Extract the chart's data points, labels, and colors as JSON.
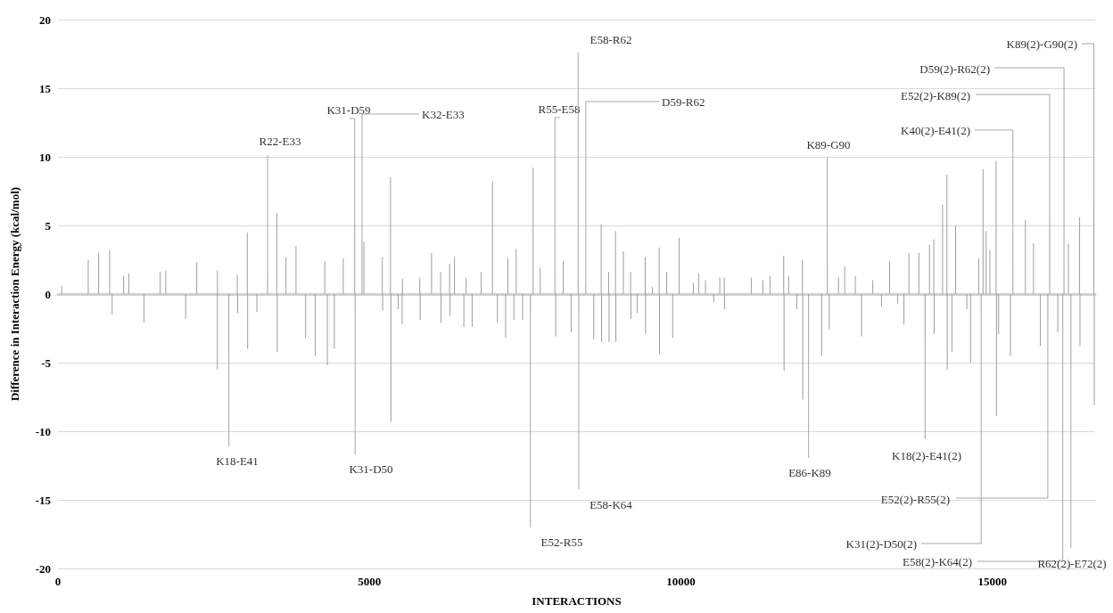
{
  "chart_data": {
    "type": "bar",
    "xlabel": "INTERACTIONS",
    "ylabel": "Difference in Interaction Energy (kcal/mol)",
    "xlim": [
      0,
      16650
    ],
    "xticks": [
      0,
      5000,
      10000,
      15000
    ],
    "ylim": [
      -20,
      20
    ],
    "yticks": [
      -20,
      -15,
      -10,
      -5,
      0,
      5,
      10,
      15,
      20
    ],
    "grid": "y",
    "series": [
      {
        "color": "#9e9e9e",
        "x": [
          60,
          486,
          652,
          829,
          870,
          1054,
          1137,
          1380,
          1641,
          1730,
          2050,
          2227,
          2559,
          2560,
          2743,
          2879,
          2885,
          3039,
          3045,
          3193,
          3365,
          3513,
          3520,
          3661,
          3821,
          3975,
          4129,
          4283,
          4325,
          4437,
          4579,
          4763,
          4770,
          4881,
          4911,
          5207,
          5212,
          5338,
          5345,
          5462,
          5525,
          5530,
          5809,
          5815,
          5997,
          6142,
          6148,
          6287,
          6293,
          6365,
          6516,
          6552,
          6649,
          6794,
          6975,
          7054,
          7186,
          7223,
          7319,
          7356,
          7458,
          7585,
          7627,
          7742,
          7978,
          7990,
          8111,
          8237,
          8350,
          8360,
          8473,
          8600,
          8721,
          8727,
          8841,
          8847,
          8950,
          8956,
          9077,
          9192,
          9198,
          9300,
          9427,
          9433,
          9542,
          9651,
          9657,
          9771,
          9868,
          9971,
          10200,
          10285,
          10394,
          10527,
          10624,
          10696,
          10702,
          11130,
          11316,
          11430,
          11650,
          11656,
          11730,
          11860,
          11950,
          11956,
          12050,
          12260,
          12350,
          12380,
          12530,
          12630,
          12800,
          12900,
          13080,
          13220,
          13350,
          13480,
          13580,
          13660,
          13820,
          13920,
          13990,
          14060,
          14066,
          14200,
          14270,
          14276,
          14350,
          14410,
          14590,
          14650,
          14780,
          14820,
          14850,
          14900,
          14960,
          15060,
          15066,
          15100,
          15290,
          15330,
          15530,
          15660,
          15770,
          15890,
          15920,
          16050,
          16130,
          16150,
          16220,
          16260,
          16400,
          16406,
          16630,
          16636
        ],
        "values": [
          0.6,
          2.5,
          3.0,
          3.2,
          -1.5,
          1.3,
          1.5,
          -2.1,
          1.6,
          1.7,
          -1.8,
          2.3,
          -5.5,
          1.7,
          -4.2,
          1.4,
          -1.4,
          4.5,
          -4.0,
          -1.3,
          1.3,
          5.9,
          -4.2,
          2.7,
          3.5,
          -3.2,
          -4.5,
          2.4,
          -5.2,
          -4.0,
          2.6,
          5.2,
          -1.2,
          0.8,
          3.8,
          2.7,
          -1.2,
          8.5,
          -9.3,
          -1.1,
          -2.2,
          1.1,
          1.2,
          -1.9,
          3.0,
          1.6,
          -2.1,
          2.2,
          -1.6,
          2.7,
          -2.4,
          1.2,
          -2.4,
          1.6,
          8.2,
          -2.1,
          -3.2,
          2.6,
          -1.9,
          3.3,
          -1.9,
          -1.5,
          9.2,
          1.9,
          1.1,
          -3.1,
          2.4,
          -2.8,
          1.0,
          -1.4,
          0.8,
          -3.3,
          5.1,
          -3.5,
          1.6,
          -3.5,
          4.6,
          -3.5,
          3.1,
          1.6,
          -1.8,
          -1.4,
          2.7,
          -2.9,
          0.5,
          3.4,
          -4.4,
          1.6,
          -3.2,
          4.1,
          0.8,
          1.5,
          1.0,
          -0.6,
          1.2,
          1.2,
          -1.1,
          1.2,
          1.0,
          1.3,
          2.8,
          -5.6,
          1.3,
          -1.1,
          2.5,
          -7.7,
          -4.2,
          -4.5,
          2.0,
          -2.6,
          1.2,
          2.0,
          1.3,
          -3.1,
          1.0,
          -0.9,
          2.4,
          -0.7,
          -2.2,
          3.0,
          3.0,
          -3.5,
          3.6,
          4.0,
          -2.9,
          6.5,
          8.7,
          -5.5,
          -4.2,
          5.0,
          -1.1,
          -5.0,
          2.6,
          -1.5,
          9.1,
          4.6,
          3.2,
          9.7,
          -8.9,
          -2.9,
          -4.5,
          2.0,
          5.4,
          3.7,
          -3.8,
          -2.0,
          5.5,
          -2.8,
          -2.5,
          2.0,
          3.7,
          -5.4,
          5.6,
          -3.8,
          6.6,
          -8.1
        ]
      }
    ],
    "annotations": [
      {
        "text": "K18-E41",
        "x": 2743,
        "y": -4.2
      },
      {
        "text": "R22-E33",
        "x": 3365,
        "y": 1.3
      },
      {
        "text": "K31-D59",
        "x": 4763,
        "y": 5.2
      },
      {
        "text": "K31-D50",
        "x": 4770,
        "y": -1.2
      },
      {
        "text": "K32-E33",
        "x": 4881,
        "y": 0.8
      },
      {
        "text": "E52-R55",
        "x": 7585,
        "y": -1.5
      },
      {
        "text": "R55-E58",
        "x": 7978,
        "y": 1.1
      },
      {
        "text": "E58-R62",
        "x": 8350,
        "y": 1.0
      },
      {
        "text": "E58-K64",
        "x": 8360,
        "y": -1.4
      },
      {
        "text": "D59-R62",
        "x": 8473,
        "y": 0.8
      },
      {
        "text": "E86-K89",
        "x": 12050,
        "y": -4.2
      },
      {
        "text": "K89-G90",
        "x": 12350,
        "y": 2.0
      },
      {
        "text": "K18(2)-E41(2)",
        "x": 13920,
        "y": -3.5
      },
      {
        "text": "K31(2)-D50(2)",
        "x": 14820,
        "y": -1.5
      },
      {
        "text": "K40(2)-E41(2)",
        "x": 15330,
        "y": 2.0
      },
      {
        "text": "E52(2)-R55(2)",
        "x": 15890,
        "y": -2.0
      },
      {
        "text": "E52(2)-K89(2)",
        "x": 15920,
        "y": 5.5
      },
      {
        "text": "E58(2)-K64(2)",
        "x": 16130,
        "y": -2.5
      },
      {
        "text": "D59(2)-R62(2)",
        "x": 16150,
        "y": 2.0
      },
      {
        "text": "R62(2)-E72(2)",
        "x": 16260,
        "y": -5.4
      },
      {
        "text": "K89(2)-G90(2)",
        "x": 16630,
        "y": 6.6
      }
    ]
  }
}
